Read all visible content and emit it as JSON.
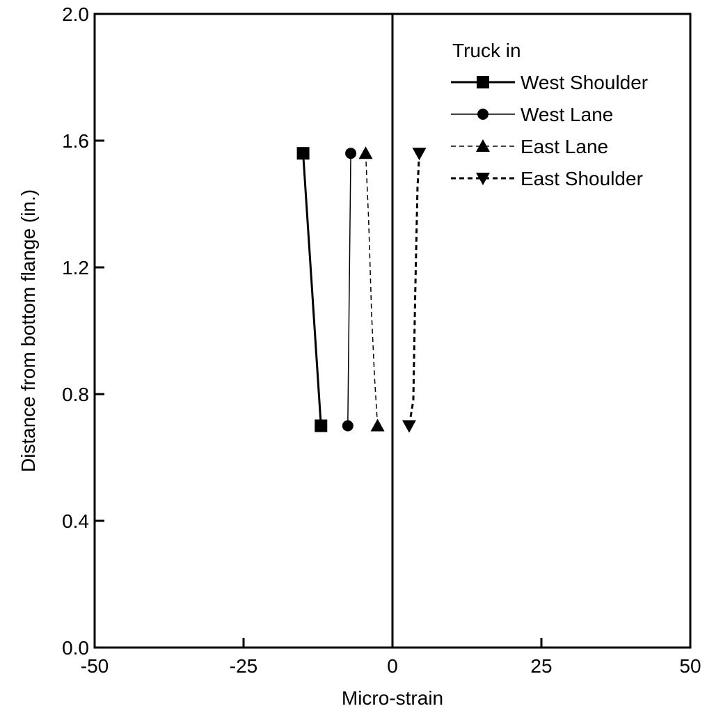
{
  "chart_data": {
    "type": "line",
    "title": "",
    "xlabel": "Micro-strain",
    "ylabel": "Distance from bottom flange (in.)",
    "xlim": [
      -50,
      50
    ],
    "ylim": [
      0.0,
      2.0
    ],
    "x_ticks": [
      -50,
      -25,
      0,
      25,
      50
    ],
    "x_tick_labels": [
      "-50",
      "-25",
      "0",
      "25",
      "50"
    ],
    "y_ticks": [
      0.0,
      0.4,
      0.8,
      1.2,
      1.6,
      2.0
    ],
    "y_tick_labels": [
      "0.0",
      "0.4",
      "0.8",
      "1.2",
      "1.6",
      "2.0"
    ],
    "grid": false,
    "zero_line_x": 0,
    "legend": {
      "title": "Truck in",
      "placement": "top-right"
    },
    "series": [
      {
        "name": "West Shoulder",
        "marker": "square",
        "line": "solid-thick",
        "x": [
          -15,
          -12
        ],
        "y": [
          1.56,
          0.7
        ]
      },
      {
        "name": "West Lane",
        "marker": "circle",
        "line": "solid-thin",
        "x": [
          -7,
          -7.5
        ],
        "y": [
          1.56,
          0.7
        ]
      },
      {
        "name": "East Lane",
        "marker": "triangle-up",
        "line": "dashed-thin",
        "x": [
          -4.5,
          -4,
          -3.5,
          -3,
          -2.5
        ],
        "y": [
          1.56,
          1.35,
          1.05,
          0.85,
          0.7
        ]
      },
      {
        "name": "East Shoulder",
        "marker": "triangle-down",
        "line": "dashed-thick",
        "x": [
          4.5,
          4.2,
          3.8,
          3.5,
          2.8
        ],
        "y": [
          1.56,
          1.45,
          1.1,
          0.78,
          0.7
        ]
      }
    ]
  }
}
